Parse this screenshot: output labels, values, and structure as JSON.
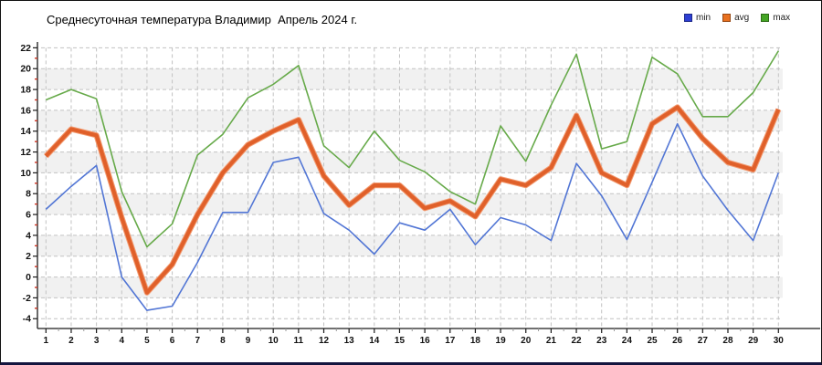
{
  "title": "Среднесуточная температура Владимир  Апрель 2024 г.",
  "legend": [
    {
      "label": "min",
      "color": "#2d3fd3"
    },
    {
      "label": "avg",
      "color": "#e8701f"
    },
    {
      "label": "max",
      "color": "#44a524"
    }
  ],
  "chart_data": {
    "type": "line",
    "title": "Среднесуточная температура Владимир  Апрель 2024 г.",
    "x": [
      1,
      2,
      3,
      4,
      5,
      6,
      7,
      8,
      9,
      10,
      11,
      12,
      13,
      14,
      15,
      16,
      17,
      18,
      19,
      20,
      21,
      22,
      23,
      24,
      25,
      26,
      27,
      28,
      29,
      30
    ],
    "series": [
      {
        "name": "min",
        "color": "#5276d5",
        "width": 1.6,
        "values": [
          6.5,
          8.7,
          10.7,
          0.0,
          -3.2,
          -2.8,
          1.4,
          6.2,
          6.2,
          11.0,
          11.5,
          6.1,
          4.5,
          2.2,
          5.2,
          4.5,
          6.5,
          3.1,
          5.7,
          5.0,
          3.5,
          10.9,
          7.8,
          3.6,
          9.1,
          14.7,
          9.7,
          6.4,
          3.5,
          10.0
        ]
      },
      {
        "name": "avg",
        "color": "#e0602a",
        "width": 4.2,
        "values": [
          11.6,
          14.2,
          13.6,
          5.7,
          -1.5,
          1.2,
          6.0,
          10.0,
          12.7,
          14.0,
          15.1,
          9.7,
          6.9,
          8.8,
          8.8,
          6.6,
          7.3,
          5.8,
          9.4,
          8.8,
          10.5,
          15.5,
          10.0,
          8.8,
          14.7,
          16.3,
          13.3,
          11.0,
          10.3,
          16.1
        ]
      },
      {
        "name": "max",
        "color": "#67aa4a",
        "width": 1.6,
        "values": [
          17.0,
          18.0,
          17.1,
          8.2,
          2.9,
          5.1,
          11.7,
          13.7,
          17.2,
          18.5,
          20.3,
          12.6,
          10.5,
          14.0,
          11.2,
          10.1,
          8.2,
          7.0,
          14.5,
          11.1,
          16.5,
          21.4,
          12.3,
          13.0,
          21.1,
          19.5,
          15.4,
          15.4,
          17.7,
          21.7
        ]
      }
    ],
    "ylim": [
      -4,
      22
    ],
    "ytick_step": 2,
    "xtick_labels": [
      "1",
      "2",
      "3",
      "4",
      "5",
      "6",
      "7",
      "8",
      "9",
      "10",
      "11",
      "12",
      "13",
      "14",
      "15",
      "16",
      "17",
      "18",
      "19",
      "20",
      "21",
      "22",
      "23",
      "24",
      "25",
      "26",
      "27",
      "28",
      "29",
      "30"
    ],
    "ytick_labels": [
      "-4",
      "-2",
      "0",
      "2",
      "4",
      "6",
      "8",
      "10",
      "12",
      "14",
      "16",
      "18",
      "20",
      "22"
    ],
    "grid": true,
    "legend_position": "top-right",
    "style": {
      "grid_color": "#c2c2c2",
      "band_color": "#f1f1f1",
      "axis_color": "#1a1a1a",
      "minor_ytick_color": "#cc3322",
      "minor_xtick_color": "#999999",
      "tick_label_color": "#111111"
    }
  }
}
